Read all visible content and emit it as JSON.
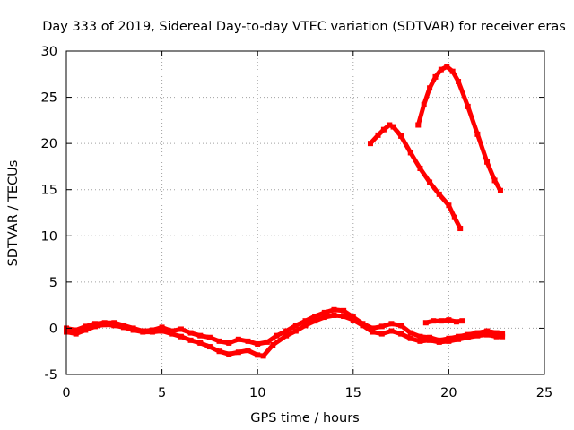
{
  "chart_data": {
    "type": "line",
    "title": "Day 333 of 2019, Sidereal Day-to-day VTEC variation (SDTVAR) for receiver eras",
    "xlabel": "GPS time / hours",
    "ylabel": "SDTVAR / TECUs",
    "xlim": [
      0,
      25
    ],
    "ylim": [
      -5,
      30
    ],
    "xticks": [
      0,
      5,
      10,
      15,
      20,
      25
    ],
    "yticks": [
      -5,
      0,
      5,
      10,
      15,
      20,
      25,
      30
    ],
    "grid": true,
    "series_color": "#ff0000",
    "series": [
      {
        "name": "track-low-upper",
        "values": [
          [
            0.0,
            0.0
          ],
          [
            0.5,
            -0.2
          ],
          [
            1.0,
            0.2
          ],
          [
            1.5,
            0.5
          ],
          [
            2.0,
            0.6
          ],
          [
            2.5,
            0.6
          ],
          [
            3.0,
            0.3
          ],
          [
            3.5,
            0.0
          ],
          [
            4.0,
            -0.3
          ],
          [
            4.5,
            -0.2
          ],
          [
            5.0,
            0.1
          ],
          [
            5.5,
            -0.3
          ],
          [
            6.0,
            -0.1
          ],
          [
            6.5,
            -0.5
          ],
          [
            7.0,
            -0.8
          ],
          [
            7.5,
            -1.0
          ],
          [
            8.0,
            -1.4
          ],
          [
            8.5,
            -1.6
          ],
          [
            9.0,
            -1.2
          ],
          [
            9.5,
            -1.4
          ],
          [
            10.0,
            -1.7
          ],
          [
            10.5,
            -1.5
          ],
          [
            11.0,
            -0.8
          ],
          [
            11.5,
            -0.3
          ],
          [
            12.0,
            0.3
          ],
          [
            12.5,
            0.8
          ],
          [
            13.0,
            1.3
          ],
          [
            13.5,
            1.7
          ],
          [
            14.0,
            2.0
          ],
          [
            14.5,
            1.9
          ],
          [
            15.0,
            1.2
          ],
          [
            15.5,
            0.5
          ],
          [
            16.0,
            0.0
          ],
          [
            16.5,
            0.2
          ],
          [
            17.0,
            0.5
          ],
          [
            17.5,
            0.3
          ],
          [
            18.0,
            -0.5
          ],
          [
            18.5,
            -0.9
          ],
          [
            19.0,
            -1.0
          ],
          [
            19.5,
            -1.3
          ],
          [
            20.0,
            -1.1
          ],
          [
            20.5,
            -0.9
          ],
          [
            21.0,
            -0.7
          ],
          [
            21.5,
            -0.5
          ],
          [
            22.0,
            -0.3
          ],
          [
            22.5,
            -0.5
          ],
          [
            22.8,
            -0.6
          ]
        ]
      },
      {
        "name": "track-low-lower",
        "values": [
          [
            0.0,
            -0.4
          ],
          [
            0.5,
            -0.6
          ],
          [
            1.0,
            -0.2
          ],
          [
            1.5,
            0.2
          ],
          [
            2.0,
            0.4
          ],
          [
            2.5,
            0.3
          ],
          [
            3.0,
            0.1
          ],
          [
            3.5,
            -0.2
          ],
          [
            4.0,
            -0.4
          ],
          [
            4.5,
            -0.4
          ],
          [
            5.0,
            -0.3
          ],
          [
            5.5,
            -0.6
          ],
          [
            6.0,
            -0.9
          ],
          [
            6.5,
            -1.3
          ],
          [
            7.0,
            -1.6
          ],
          [
            7.5,
            -2.0
          ],
          [
            8.0,
            -2.5
          ],
          [
            8.5,
            -2.8
          ],
          [
            9.0,
            -2.6
          ],
          [
            9.5,
            -2.4
          ],
          [
            10.0,
            -2.9
          ],
          [
            10.3,
            -3.0
          ],
          [
            10.8,
            -1.8
          ],
          [
            11.5,
            -0.8
          ],
          [
            12.0,
            -0.3
          ],
          [
            12.5,
            0.3
          ],
          [
            13.0,
            0.8
          ],
          [
            13.5,
            1.2
          ],
          [
            14.0,
            1.4
          ],
          [
            14.5,
            1.3
          ],
          [
            15.0,
            0.9
          ],
          [
            15.5,
            0.3
          ],
          [
            16.0,
            -0.4
          ],
          [
            16.5,
            -0.6
          ],
          [
            17.0,
            -0.3
          ],
          [
            17.5,
            -0.6
          ],
          [
            18.0,
            -1.1
          ],
          [
            18.5,
            -1.4
          ],
          [
            19.0,
            -1.3
          ],
          [
            19.5,
            -1.5
          ],
          [
            20.0,
            -1.4
          ],
          [
            20.5,
            -1.2
          ],
          [
            21.0,
            -1.0
          ],
          [
            21.5,
            -0.8
          ],
          [
            22.0,
            -0.7
          ],
          [
            22.5,
            -0.9
          ],
          [
            22.8,
            -0.9
          ]
        ]
      },
      {
        "name": "track-short",
        "values": [
          [
            18.8,
            0.6
          ],
          [
            19.2,
            0.8
          ],
          [
            19.6,
            0.8
          ],
          [
            20.0,
            0.9
          ],
          [
            20.4,
            0.7
          ],
          [
            20.7,
            0.8
          ]
        ]
      },
      {
        "name": "track-high-left",
        "values": [
          [
            15.9,
            20.0
          ],
          [
            16.3,
            20.9
          ],
          [
            16.6,
            21.5
          ],
          [
            16.9,
            22.0
          ],
          [
            17.1,
            21.8
          ],
          [
            17.5,
            20.8
          ],
          [
            18.0,
            19.0
          ],
          [
            18.5,
            17.3
          ],
          [
            19.0,
            15.8
          ],
          [
            19.5,
            14.5
          ],
          [
            20.0,
            13.3
          ],
          [
            20.3,
            12.0
          ],
          [
            20.6,
            10.8
          ]
        ]
      },
      {
        "name": "track-high-right",
        "values": [
          [
            18.4,
            22.0
          ],
          [
            18.7,
            24.2
          ],
          [
            19.0,
            26.0
          ],
          [
            19.3,
            27.2
          ],
          [
            19.6,
            28.0
          ],
          [
            19.9,
            28.3
          ],
          [
            20.2,
            27.8
          ],
          [
            20.5,
            26.7
          ],
          [
            21.0,
            24.0
          ],
          [
            21.5,
            21.0
          ],
          [
            22.0,
            18.0
          ],
          [
            22.4,
            16.0
          ],
          [
            22.7,
            14.9
          ]
        ]
      }
    ]
  }
}
